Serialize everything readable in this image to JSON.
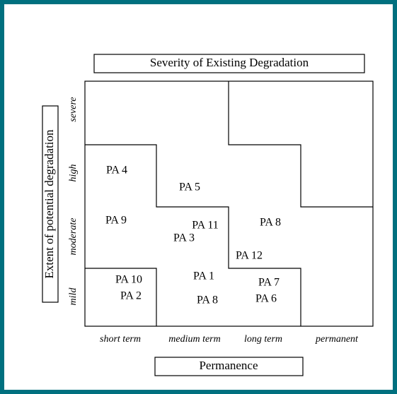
{
  "title": "Severity of Existing Degradation",
  "y_label": "Extent of potential degradation",
  "x_label": "Permanence",
  "rows": [
    "severe",
    "high",
    "moderate",
    "mild"
  ],
  "columns": [
    "short term",
    "medium term",
    "long term",
    "permanent"
  ],
  "areas": [
    "PA 4",
    "PA 5",
    "PA 9",
    "PA 11",
    "PA 3",
    "PA 8",
    "PA 12",
    "PA 10",
    "PA 2",
    "PA 1",
    "PA 8",
    "PA 7",
    "PA 6"
  ]
}
